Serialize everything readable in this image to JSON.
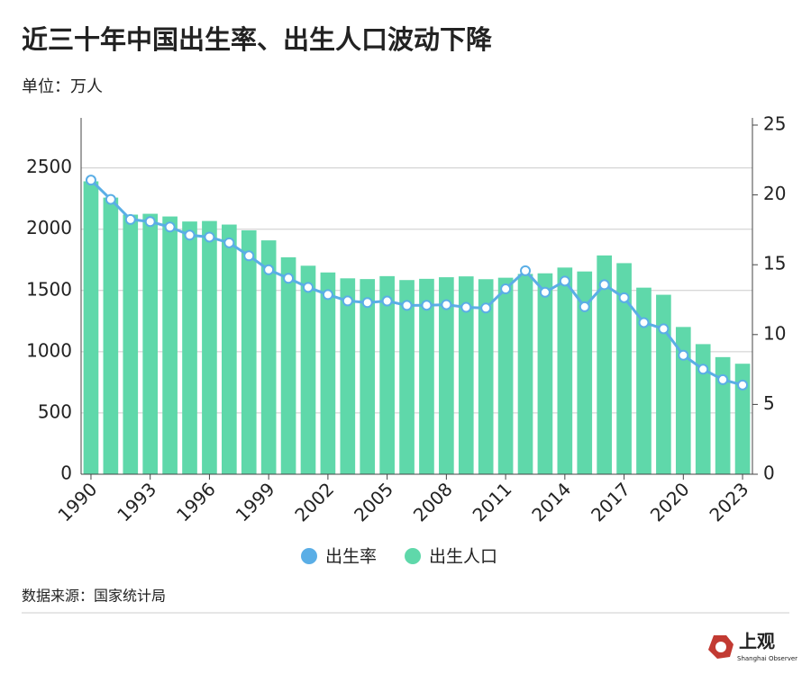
{
  "chart_data": {
    "type": "combo",
    "title": "近三十年中国出生率、出生人口波动下降",
    "subtitle": "单位：万人",
    "source": "数据来源：国家统计局",
    "brand": "上观",
    "brand_sub": "Shanghai Observer",
    "x": [
      1990,
      1991,
      1992,
      1993,
      1994,
      1995,
      1996,
      1997,
      1998,
      1999,
      2000,
      2001,
      2002,
      2003,
      2004,
      2005,
      2006,
      2007,
      2008,
      2009,
      2010,
      2011,
      2012,
      2013,
      2014,
      2015,
      2016,
      2017,
      2018,
      2019,
      2020,
      2021,
      2022,
      2023
    ],
    "xlim": [
      1989.5,
      2023.5
    ],
    "xticks": [
      1990,
      1993,
      1996,
      1999,
      2002,
      2005,
      2008,
      2011,
      2014,
      2017,
      2020,
      2023
    ],
    "ylim": [
      0,
      2850
    ],
    "yticks": [
      0,
      500,
      1000,
      1500,
      2000,
      2500
    ],
    "y2lim": [
      0,
      25
    ],
    "y2ticks": [
      0,
      5,
      10,
      15,
      20,
      25
    ],
    "grid": true,
    "legend": "bottom",
    "series": [
      {
        "name": "出生率",
        "type": "line",
        "axis": "y2",
        "color": "#5aaee6",
        "values": [
          21.06,
          19.68,
          18.24,
          18.09,
          17.7,
          17.12,
          16.98,
          16.57,
          15.64,
          14.64,
          14.03,
          13.38,
          12.86,
          12.41,
          12.29,
          12.4,
          12.09,
          12.1,
          12.14,
          11.95,
          11.9,
          13.27,
          14.57,
          13.03,
          13.83,
          11.99,
          13.57,
          12.64,
          10.86,
          10.41,
          8.52,
          7.52,
          6.77,
          6.39
        ]
      },
      {
        "name": "出生人口",
        "type": "bar",
        "color": "#5fd8aa",
        "values": [
          2391,
          2258,
          2119,
          2126,
          2104,
          2063,
          2067,
          2038,
          1991,
          1909,
          1771,
          1702,
          1647,
          1599,
          1593,
          1617,
          1585,
          1595,
          1608,
          1615,
          1592,
          1604,
          1635,
          1640,
          1687,
          1655,
          1786,
          1723,
          1523,
          1465,
          1202,
          1062,
          956,
          902
        ]
      }
    ]
  }
}
